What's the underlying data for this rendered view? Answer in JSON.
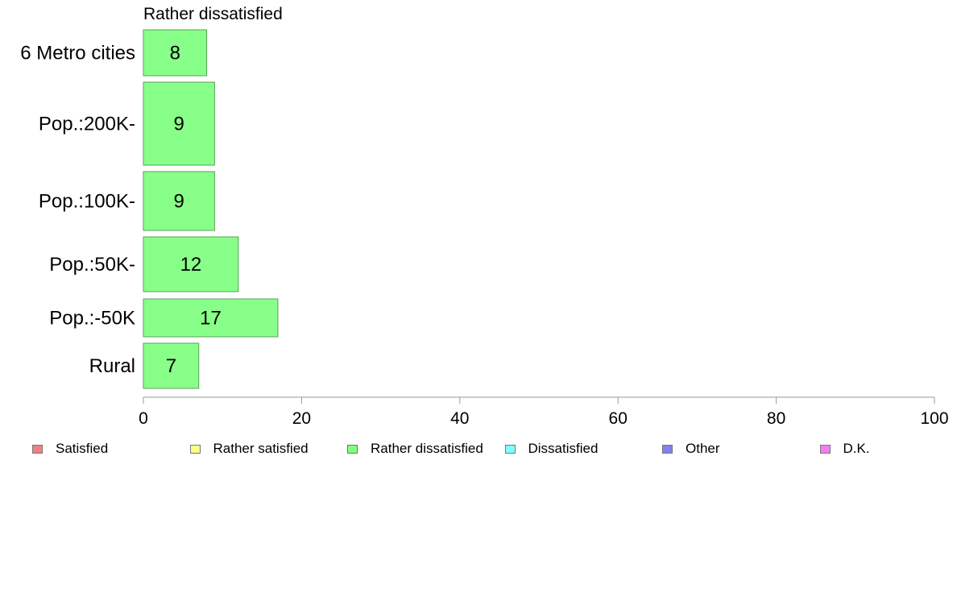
{
  "panel_title": "Rather dissatisfied",
  "legend": [
    {
      "label": "Satisfied",
      "color": "#f08080"
    },
    {
      "label": "Rather satisfied",
      "color": "#ffff80"
    },
    {
      "label": "Rather dissatisfied",
      "color": "#80ff80"
    },
    {
      "label": "Dissatisfied",
      "color": "#80ffff"
    },
    {
      "label": "Other",
      "color": "#8080f0"
    },
    {
      "label": "D.K.",
      "color": "#f080f0"
    }
  ],
  "chart_data": {
    "type": "bar",
    "orientation": "horizontal",
    "title": "Rather dissatisfied",
    "categories": [
      "6 Metro cities",
      "Pop.:200K-",
      "Pop.:100K-",
      "Pop.:50K-",
      "Pop.:-50K",
      "Rural"
    ],
    "values": [
      8,
      9,
      9,
      12,
      17,
      7
    ],
    "value_labels": [
      "8",
      "9",
      "9",
      "12",
      "17",
      "7"
    ],
    "xlim": [
      0,
      100
    ],
    "xticks": [
      0,
      20,
      40,
      60,
      80,
      100
    ],
    "bar_color": "#88ff88",
    "grid": false,
    "legend_position": "bottom"
  }
}
